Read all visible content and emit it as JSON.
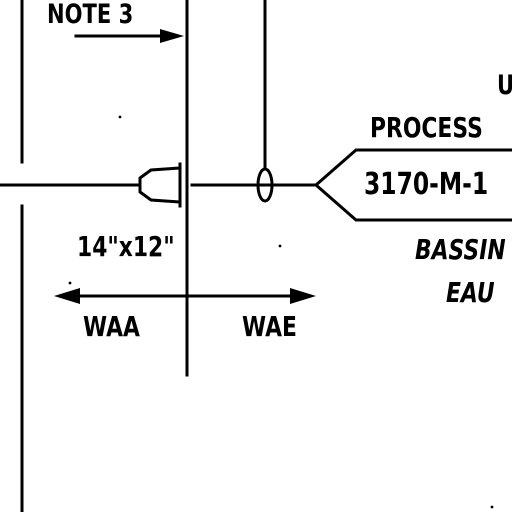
{
  "drawing": {
    "note_label": "NOTE 3",
    "top_right_fragment": "U",
    "process_label": "PROCESS",
    "line_number": "3170-M-1",
    "reducer_size": "14\"x12\"",
    "bassin_label": "BASSIN",
    "eau_label": "EAU",
    "waa_label": "WAA",
    "wae_label": "WAE"
  }
}
